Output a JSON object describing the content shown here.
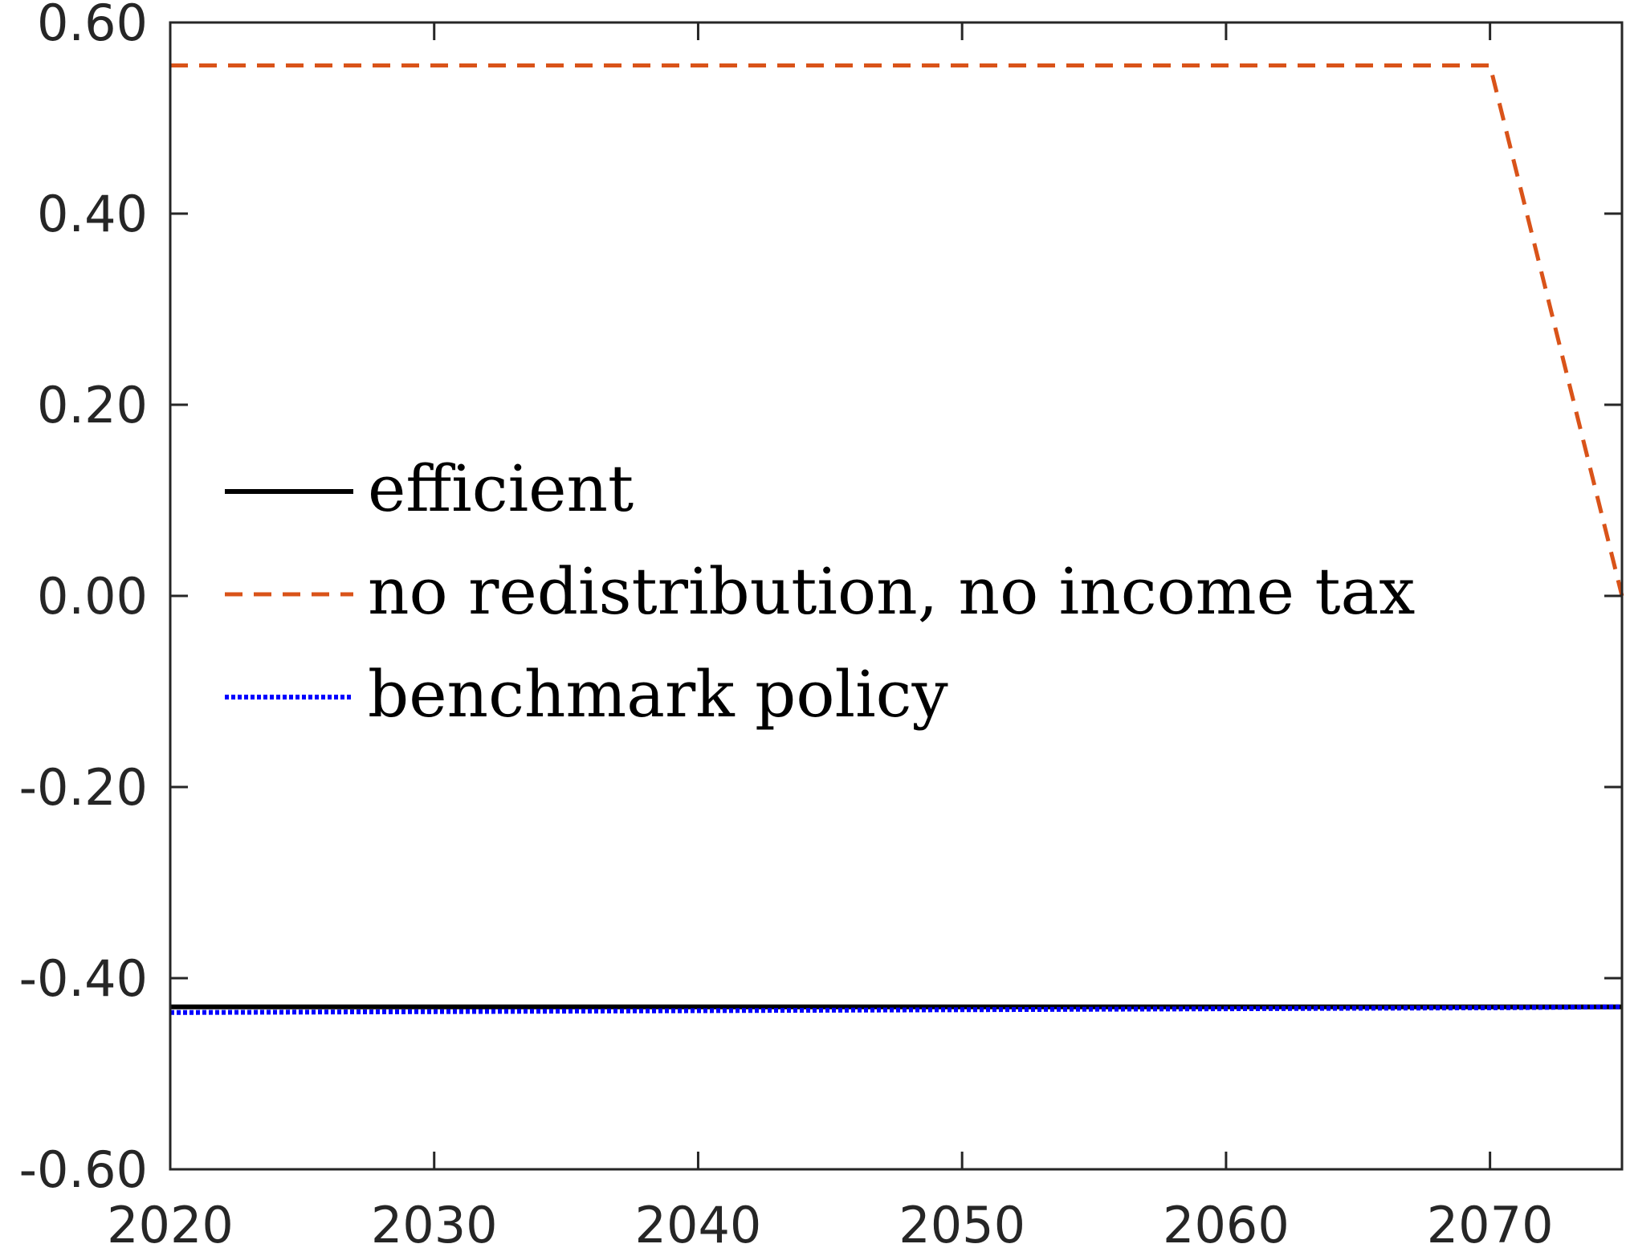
{
  "chart_data": {
    "type": "line",
    "title": "",
    "xlabel": "",
    "ylabel": "",
    "xlim": [
      2020,
      2075
    ],
    "ylim": [
      -0.6,
      0.6
    ],
    "xticks": [
      2020,
      2030,
      2040,
      2050,
      2060,
      2070
    ],
    "xtick_labels": [
      "2020",
      "2030",
      "2040",
      "2050",
      "2060",
      "2070"
    ],
    "yticks": [
      -0.6,
      -0.4,
      -0.2,
      0,
      0.2,
      0.4,
      0.6
    ],
    "ytick_labels": [
      "-0.60",
      "-0.40",
      "-0.20",
      "0.00",
      "0.20",
      "0.40",
      "0.60"
    ],
    "grid": false,
    "legend_position": "center-left",
    "series": [
      {
        "name": "efficient",
        "color": "#000000",
        "style": "solid",
        "x": [
          2020,
          2030,
          2040,
          2050,
          2060,
          2070,
          2075
        ],
        "y": [
          -0.43,
          -0.43,
          -0.43,
          -0.43,
          -0.43,
          -0.43,
          -0.43
        ]
      },
      {
        "name": "no redistribution, no income tax",
        "color": "#D95319",
        "style": "dashed",
        "x": [
          2020,
          2030,
          2040,
          2050,
          2060,
          2070,
          2075
        ],
        "y": [
          0.555,
          0.555,
          0.555,
          0.555,
          0.555,
          0.555,
          0.0
        ]
      },
      {
        "name": "benchmark policy",
        "color": "#0000FF",
        "style": "dotted",
        "x": [
          2020,
          2030,
          2040,
          2050,
          2060,
          2070,
          2075
        ],
        "y": [
          -0.436,
          -0.435,
          -0.434,
          -0.433,
          -0.432,
          -0.431,
          -0.43
        ]
      }
    ]
  }
}
